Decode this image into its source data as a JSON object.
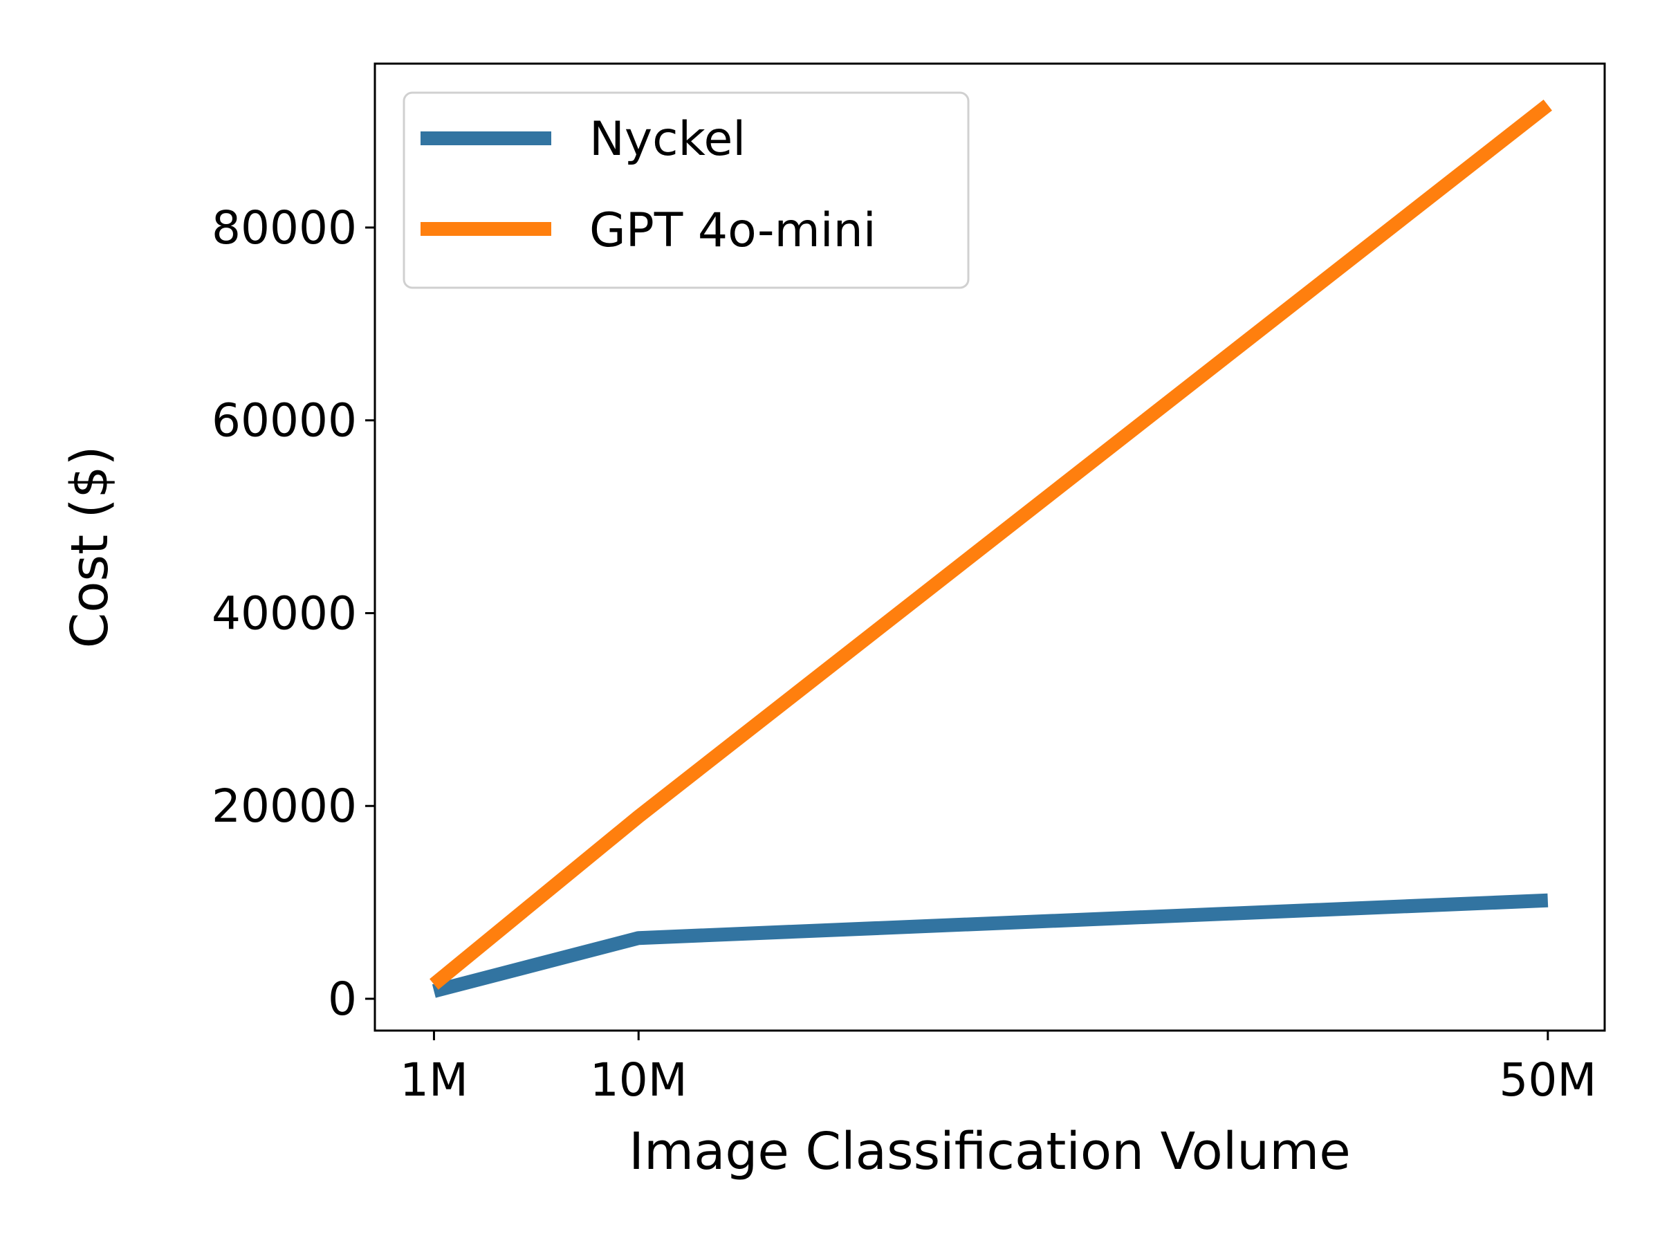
{
  "chart_data": {
    "type": "line",
    "xlabel": "Image Classification Volume",
    "ylabel": "Cost ($)",
    "x": [
      1,
      10,
      50
    ],
    "x_tick_labels": [
      "1M",
      "10M",
      "50M"
    ],
    "y_ticks": [
      0,
      20000,
      40000,
      60000,
      80000
    ],
    "y_tick_labels": [
      "0",
      "20000",
      "40000",
      "60000",
      "80000"
    ],
    "xlim": [
      -1.6,
      52.5
    ],
    "ylim": [
      -3300,
      97000
    ],
    "grid": false,
    "legend": "top-left",
    "series": [
      {
        "name": "Nyckel",
        "color": "#3274a1",
        "values": [
          800,
          6300,
          10200
        ]
      },
      {
        "name": "GPT 4o-mini",
        "color": "#ff7f0e",
        "values": [
          1500,
          18900,
          92700
        ]
      }
    ]
  }
}
